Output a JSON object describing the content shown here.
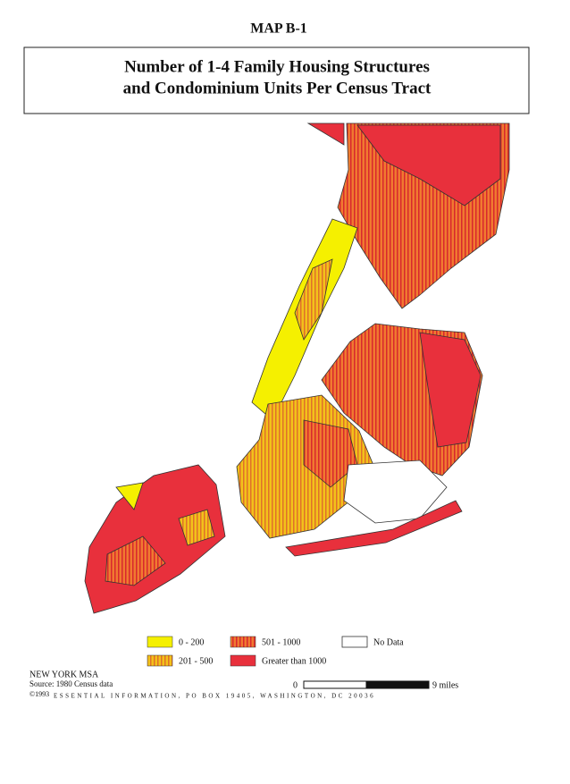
{
  "header": {
    "label": "MAP B-1",
    "title": [
      "Number of 1-4 Family Housing Structures",
      "and Condominium Units Per Census Tract"
    ]
  },
  "legend": {
    "items": [
      "0 - 200",
      "201 - 500",
      "501 - 1000",
      "Greater than 1000",
      "No Data"
    ]
  },
  "footer": {
    "region": "NEW YORK MSA",
    "source": "Source: 1980 Census data",
    "copyright": "©1993",
    "publisher": "ESSENTIAL INFORMATION, PO BOX 19405, WASHINGTON, DC 20036"
  },
  "scale": {
    "start": "0",
    "end": "9 miles"
  }
}
